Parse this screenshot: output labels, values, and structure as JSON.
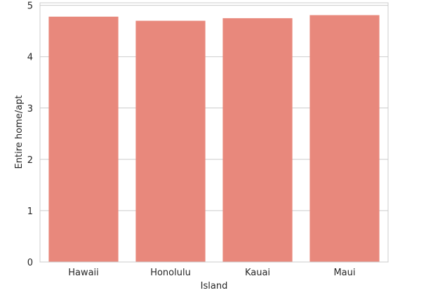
{
  "chart_data": {
    "type": "bar",
    "categories": [
      "Hawaii",
      "Honolulu",
      "Kauai",
      "Maui"
    ],
    "values": [
      4.78,
      4.7,
      4.75,
      4.81
    ],
    "xlabel": "Island",
    "ylabel": "Entire home/apt",
    "ylim": [
      0,
      5.05
    ],
    "yticks": [
      0,
      1,
      2,
      3,
      4,
      5
    ],
    "bar_color": "#e8887c",
    "grid": true,
    "grid_axis": "y"
  }
}
